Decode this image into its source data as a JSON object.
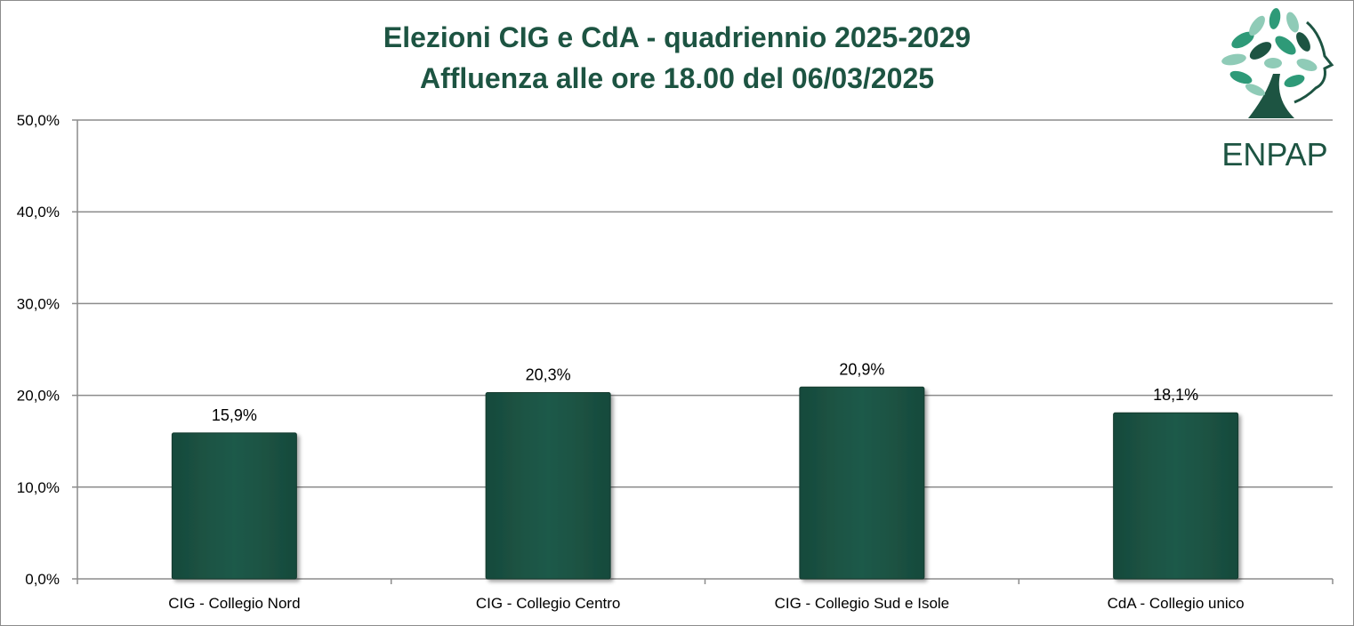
{
  "colors": {
    "bar": "#1e5848",
    "bar_edge": "#123a2f",
    "title": "#1d5442",
    "grid": "#8c8c8c",
    "logo_dark": "#1d5442",
    "logo_mid": "#2e9a78",
    "logo_light": "#8fcbb7"
  },
  "logo": {
    "icon": "tree-face-logo-icon",
    "text": "ENPAP"
  },
  "chart_data": {
    "type": "bar",
    "title": "Elezioni CIG e CdA - quadriennio 2025-2029",
    "subtitle": "Affluenza alle ore 18.00 del 06/03/2025",
    "categories": [
      "CIG - Collegio Nord",
      "CIG - Collegio Centro",
      "CIG - Collegio Sud e Isole",
      "CdA - Collegio unico"
    ],
    "values": [
      15.9,
      20.3,
      20.9,
      18.1
    ],
    "data_labels": [
      "15,9%",
      "20,3%",
      "20,9%",
      "18,1%"
    ],
    "ylim": [
      0,
      50
    ],
    "yticks": [
      0,
      10,
      20,
      30,
      40,
      50
    ],
    "ytick_labels": [
      "0,0%",
      "10,0%",
      "20,0%",
      "30,0%",
      "40,0%",
      "50,0%"
    ],
    "xlabel": "",
    "ylabel": "",
    "grid": true,
    "legend": "none"
  }
}
